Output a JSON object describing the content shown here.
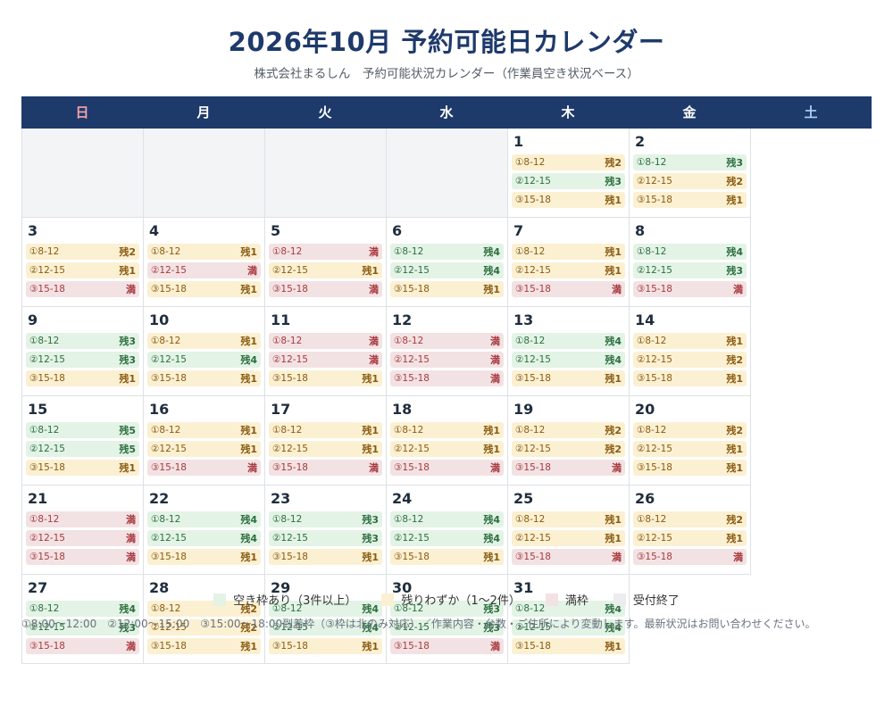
{
  "title": "2026年10月 予約可能日カレンダー",
  "subtitle": "株式会社まるしん　予約可能状況カレンダー（作業員空き状況ベース）",
  "colors": {
    "header": "#1e3a6b",
    "green": "#e3f3e6",
    "yellow": "#fbf0d2",
    "red": "#f3e2e3",
    "gray": "#ececee"
  },
  "weekdays": [
    "日",
    "月",
    "火",
    "水",
    "木",
    "金",
    "土"
  ],
  "slot_labels": [
    "①8-12",
    "②12-15",
    "③15-18"
  ],
  "leading_blanks": 4,
  "days": [
    {
      "d": "1",
      "s": [
        [
          "残2",
          "yellow"
        ],
        [
          "残3",
          "green"
        ],
        [
          "残1",
          "yellow"
        ]
      ]
    },
    {
      "d": "2",
      "s": [
        [
          "残3",
          "green"
        ],
        [
          "残2",
          "yellow"
        ],
        [
          "残1",
          "yellow"
        ]
      ]
    },
    {
      "d": "3",
      "s": [
        [
          "残2",
          "yellow"
        ],
        [
          "残1",
          "yellow"
        ],
        [
          "満",
          "red"
        ]
      ]
    },
    {
      "d": "4",
      "s": [
        [
          "残1",
          "yellow"
        ],
        [
          "満",
          "red"
        ],
        [
          "残1",
          "yellow"
        ]
      ]
    },
    {
      "d": "5",
      "s": [
        [
          "満",
          "red"
        ],
        [
          "残1",
          "yellow"
        ],
        [
          "満",
          "red"
        ]
      ]
    },
    {
      "d": "6",
      "s": [
        [
          "残4",
          "green"
        ],
        [
          "残4",
          "green"
        ],
        [
          "残1",
          "yellow"
        ]
      ]
    },
    {
      "d": "7",
      "s": [
        [
          "残1",
          "yellow"
        ],
        [
          "残1",
          "yellow"
        ],
        [
          "満",
          "red"
        ]
      ]
    },
    {
      "d": "8",
      "s": [
        [
          "残4",
          "green"
        ],
        [
          "残3",
          "green"
        ],
        [
          "満",
          "red"
        ]
      ]
    },
    {
      "d": "9",
      "s": [
        [
          "残3",
          "green"
        ],
        [
          "残3",
          "green"
        ],
        [
          "残1",
          "yellow"
        ]
      ]
    },
    {
      "d": "10",
      "s": [
        [
          "残1",
          "yellow"
        ],
        [
          "残4",
          "green"
        ],
        [
          "残1",
          "yellow"
        ]
      ]
    },
    {
      "d": "11",
      "s": [
        [
          "満",
          "red"
        ],
        [
          "満",
          "red"
        ],
        [
          "残1",
          "yellow"
        ]
      ]
    },
    {
      "d": "12",
      "s": [
        [
          "満",
          "red"
        ],
        [
          "満",
          "red"
        ],
        [
          "満",
          "red"
        ]
      ]
    },
    {
      "d": "13",
      "s": [
        [
          "残4",
          "green"
        ],
        [
          "残4",
          "green"
        ],
        [
          "残1",
          "yellow"
        ]
      ]
    },
    {
      "d": "14",
      "s": [
        [
          "残1",
          "yellow"
        ],
        [
          "残2",
          "yellow"
        ],
        [
          "残1",
          "yellow"
        ]
      ]
    },
    {
      "d": "15",
      "s": [
        [
          "残5",
          "green"
        ],
        [
          "残5",
          "green"
        ],
        [
          "残1",
          "yellow"
        ]
      ]
    },
    {
      "d": "16",
      "s": [
        [
          "残1",
          "yellow"
        ],
        [
          "残1",
          "yellow"
        ],
        [
          "満",
          "red"
        ]
      ]
    },
    {
      "d": "17",
      "s": [
        [
          "残1",
          "yellow"
        ],
        [
          "残1",
          "yellow"
        ],
        [
          "満",
          "red"
        ]
      ]
    },
    {
      "d": "18",
      "s": [
        [
          "残1",
          "yellow"
        ],
        [
          "残1",
          "yellow"
        ],
        [
          "満",
          "red"
        ]
      ]
    },
    {
      "d": "19",
      "s": [
        [
          "残2",
          "yellow"
        ],
        [
          "残2",
          "yellow"
        ],
        [
          "満",
          "red"
        ]
      ]
    },
    {
      "d": "20",
      "s": [
        [
          "残2",
          "yellow"
        ],
        [
          "残1",
          "yellow"
        ],
        [
          "残1",
          "yellow"
        ]
      ]
    },
    {
      "d": "21",
      "s": [
        [
          "満",
          "red"
        ],
        [
          "満",
          "red"
        ],
        [
          "満",
          "red"
        ]
      ]
    },
    {
      "d": "22",
      "s": [
        [
          "残4",
          "green"
        ],
        [
          "残4",
          "green"
        ],
        [
          "残1",
          "yellow"
        ]
      ]
    },
    {
      "d": "23",
      "s": [
        [
          "残3",
          "green"
        ],
        [
          "残3",
          "green"
        ],
        [
          "残1",
          "yellow"
        ]
      ]
    },
    {
      "d": "24",
      "s": [
        [
          "残4",
          "green"
        ],
        [
          "残4",
          "green"
        ],
        [
          "残1",
          "yellow"
        ]
      ]
    },
    {
      "d": "25",
      "s": [
        [
          "残1",
          "yellow"
        ],
        [
          "残1",
          "yellow"
        ],
        [
          "満",
          "red"
        ]
      ]
    },
    {
      "d": "26",
      "s": [
        [
          "残2",
          "yellow"
        ],
        [
          "残1",
          "yellow"
        ],
        [
          "満",
          "red"
        ]
      ]
    },
    {
      "d": "27",
      "s": [
        [
          "残4",
          "green"
        ],
        [
          "残3",
          "green"
        ],
        [
          "満",
          "red"
        ]
      ]
    },
    {
      "d": "28",
      "s": [
        [
          "残2",
          "yellow"
        ],
        [
          "残2",
          "yellow"
        ],
        [
          "残1",
          "yellow"
        ]
      ]
    },
    {
      "d": "29",
      "s": [
        [
          "残4",
          "green"
        ],
        [
          "残4",
          "green"
        ],
        [
          "残1",
          "yellow"
        ]
      ]
    },
    {
      "d": "30",
      "s": [
        [
          "残3",
          "green"
        ],
        [
          "残3",
          "green"
        ],
        [
          "満",
          "red"
        ]
      ]
    },
    {
      "d": "31",
      "s": [
        [
          "残4",
          "green"
        ],
        [
          "残4",
          "green"
        ],
        [
          "残1",
          "yellow"
        ]
      ]
    }
  ],
  "legend": [
    {
      "label": "空き枠あり（3件以上）",
      "status": "green"
    },
    {
      "label": "残りわずか（1〜2件）",
      "status": "yellow"
    },
    {
      "label": "満枠",
      "status": "red"
    },
    {
      "label": "受付終了",
      "status": "gray"
    }
  ],
  "note": "①8:00〜12:00　②12:00〜15:00　③15:00〜18:00到着枠（③枠は北のみ対応）／作業内容・台数・ご住所により変動します。最新状況はお問い合わせください。"
}
